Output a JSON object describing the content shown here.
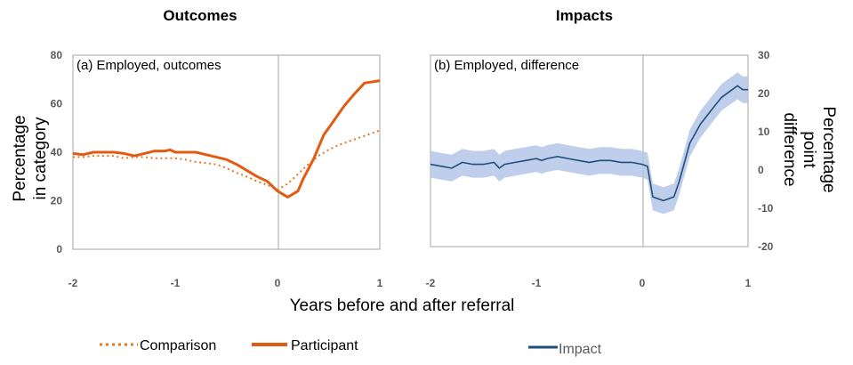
{
  "titles": {
    "left": "Outcomes",
    "right": "Impacts"
  },
  "xlabel": "Years before and after referral",
  "colors": {
    "comparison": "#E87722",
    "participant": "#E35A12",
    "impact": "#1F4E79",
    "band": "#B4C7E7",
    "frame": "#A6A6A6",
    "zeroline": "#A6A6A6"
  },
  "legend": {
    "comparison": "Comparison",
    "participant": "Participant",
    "impact": "Impact"
  },
  "chart_data": [
    {
      "type": "line",
      "panel_label": "(a) Employed, outcomes",
      "ylabel_lines": [
        "Percentage",
        "in category"
      ],
      "xlim": [
        -2,
        1
      ],
      "ylim": [
        0,
        80
      ],
      "xticks": [
        -2,
        -1,
        0,
        1
      ],
      "yticks": [
        0,
        20,
        40,
        60,
        80
      ],
      "grid": false,
      "series": [
        {
          "name": "Comparison",
          "style": "dotted",
          "points": [
            [
              -2,
              38
            ],
            [
              -1.9,
              38
            ],
            [
              -1.8,
              38.5
            ],
            [
              -1.7,
              38.5
            ],
            [
              -1.6,
              38.5
            ],
            [
              -1.5,
              37.5
            ],
            [
              -1.4,
              38
            ],
            [
              -1.3,
              38
            ],
            [
              -1.2,
              37.5
            ],
            [
              -1.1,
              37.5
            ],
            [
              -1.0,
              37.5
            ],
            [
              -0.9,
              37
            ],
            [
              -0.8,
              36
            ],
            [
              -0.7,
              35.5
            ],
            [
              -0.6,
              35
            ],
            [
              -0.5,
              33.5
            ],
            [
              -0.4,
              31.5
            ],
            [
              -0.3,
              30
            ],
            [
              -0.2,
              28
            ],
            [
              -0.1,
              26.5
            ],
            [
              0.0,
              24.5
            ],
            [
              0.1,
              27
            ],
            [
              0.2,
              31
            ],
            [
              0.3,
              35
            ],
            [
              0.4,
              38.5
            ],
            [
              0.5,
              41
            ],
            [
              0.6,
              43
            ],
            [
              0.7,
              44.5
            ],
            [
              0.8,
              46
            ],
            [
              0.9,
              47.5
            ],
            [
              1.0,
              49
            ]
          ]
        },
        {
          "name": "Participant",
          "style": "solid",
          "points": [
            [
              -2,
              39.5
            ],
            [
              -1.9,
              39
            ],
            [
              -1.8,
              40
            ],
            [
              -1.7,
              40
            ],
            [
              -1.6,
              40
            ],
            [
              -1.5,
              39.5
            ],
            [
              -1.4,
              38.5
            ],
            [
              -1.3,
              39.5
            ],
            [
              -1.2,
              40.5
            ],
            [
              -1.1,
              40.5
            ],
            [
              -1.05,
              41
            ],
            [
              -1.0,
              40
            ],
            [
              -0.9,
              40
            ],
            [
              -0.8,
              40
            ],
            [
              -0.7,
              39
            ],
            [
              -0.6,
              38
            ],
            [
              -0.5,
              37
            ],
            [
              -0.4,
              35
            ],
            [
              -0.3,
              32.5
            ],
            [
              -0.2,
              30
            ],
            [
              -0.1,
              28
            ],
            [
              0.0,
              24
            ],
            [
              0.1,
              21.5
            ],
            [
              0.2,
              24
            ],
            [
              0.25,
              29
            ],
            [
              0.35,
              37
            ],
            [
              0.45,
              47
            ],
            [
              0.55,
              53
            ],
            [
              0.65,
              59
            ],
            [
              0.75,
              64
            ],
            [
              0.85,
              68.5
            ],
            [
              1.0,
              69.5
            ]
          ]
        }
      ]
    },
    {
      "type": "line",
      "panel_label": "(b) Employed, difference",
      "ylabel_lines": [
        "Percentage",
        "point",
        "difference"
      ],
      "xlim": [
        -2,
        1
      ],
      "ylim": [
        -20,
        30
      ],
      "xticks": [
        -2,
        -1,
        0,
        1
      ],
      "yticks": [
        -20,
        -10,
        0,
        10,
        20,
        30
      ],
      "grid": false,
      "series": [
        {
          "name": "Impact",
          "style": "solid",
          "points": [
            [
              -2,
              1.5
            ],
            [
              -1.9,
              1
            ],
            [
              -1.8,
              0.5
            ],
            [
              -1.7,
              2
            ],
            [
              -1.6,
              1.5
            ],
            [
              -1.5,
              1.5
            ],
            [
              -1.4,
              2
            ],
            [
              -1.35,
              0.5
            ],
            [
              -1.3,
              1.5
            ],
            [
              -1.2,
              2
            ],
            [
              -1.1,
              2.5
            ],
            [
              -1.0,
              3
            ],
            [
              -0.95,
              2.5
            ],
            [
              -0.9,
              3
            ],
            [
              -0.8,
              3.5
            ],
            [
              -0.7,
              3
            ],
            [
              -0.6,
              2.5
            ],
            [
              -0.5,
              2
            ],
            [
              -0.4,
              2.5
            ],
            [
              -0.3,
              2.5
            ],
            [
              -0.2,
              2
            ],
            [
              -0.1,
              2
            ],
            [
              0.0,
              1.5
            ],
            [
              0.05,
              1
            ],
            [
              0.1,
              -7
            ],
            [
              0.2,
              -8
            ],
            [
              0.3,
              -7
            ],
            [
              0.35,
              -3
            ],
            [
              0.45,
              7
            ],
            [
              0.55,
              12
            ],
            [
              0.65,
              15.5
            ],
            [
              0.75,
              19
            ],
            [
              0.85,
              21
            ],
            [
              0.9,
              22
            ],
            [
              0.95,
              21
            ],
            [
              1.0,
              21
            ]
          ],
          "band_half_width": 3.5
        }
      ]
    }
  ]
}
